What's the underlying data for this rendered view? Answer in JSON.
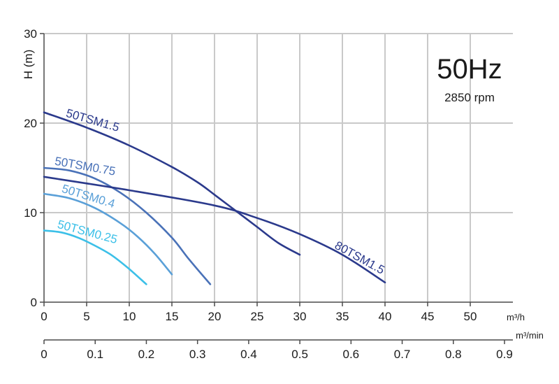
{
  "chart_data": {
    "type": "line",
    "title": "",
    "frequency_label": "50Hz",
    "speed_label": "2850 rpm",
    "ylabel": "H (m)",
    "x_unit": "m³/h",
    "x2_unit": "m³/min",
    "xlim": [
      0,
      55
    ],
    "ylim": [
      0,
      30
    ],
    "x2lim": [
      0,
      0.9
    ],
    "x_ticks": [
      "0",
      "5",
      "10",
      "15",
      "20",
      "25",
      "30",
      "35",
      "40",
      "45",
      "50"
    ],
    "x2_ticks": [
      "0",
      "0.1",
      "0.2",
      "0.3",
      "0.4",
      "0.5",
      "0.6",
      "0.7",
      "0.8",
      "0.9"
    ],
    "y_ticks": [
      "0",
      "10",
      "20",
      "30"
    ],
    "grid": true,
    "series": [
      {
        "name": "50TSM1.5",
        "color": "#2b3a8c",
        "x": [
          0,
          5,
          10,
          15,
          18,
          20,
          22.5,
          25,
          27.5,
          30
        ],
        "y": [
          21.2,
          19.5,
          17.5,
          15.1,
          13.4,
          12.0,
          10.2,
          8.4,
          6.6,
          5.3
        ]
      },
      {
        "name": "50TSM0.75",
        "color": "#4a72b8",
        "x": [
          0,
          3,
          6,
          9,
          12,
          15,
          17,
          19.5
        ],
        "y": [
          15.0,
          14.7,
          13.8,
          12.2,
          10.0,
          7.2,
          4.8,
          2.0
        ]
      },
      {
        "name": "50TSM0.4",
        "color": "#5aa0d8",
        "x": [
          0,
          3,
          6,
          9,
          11,
          13,
          15
        ],
        "y": [
          12.1,
          11.6,
          10.5,
          8.8,
          7.3,
          5.4,
          3.1
        ]
      },
      {
        "name": "50TSM0.25",
        "color": "#3cc0e8",
        "x": [
          0,
          2,
          4,
          6,
          8,
          10,
          12
        ],
        "y": [
          8.0,
          7.8,
          7.2,
          6.3,
          5.2,
          3.7,
          2.0
        ]
      },
      {
        "name": "80TSM1.5",
        "color": "#2b3a8c",
        "x": [
          0,
          10,
          20,
          25,
          30,
          35,
          40
        ],
        "y": [
          14.0,
          12.5,
          10.8,
          9.4,
          7.6,
          5.3,
          2.2
        ]
      }
    ]
  }
}
